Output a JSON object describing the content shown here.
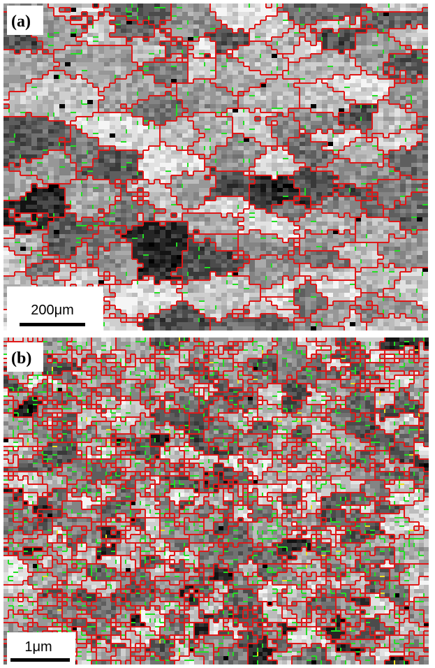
{
  "panels": [
    {
      "label": "(a)",
      "scale_bar": "200μm"
    },
    {
      "label": "(b)",
      "scale_bar": "1μm"
    }
  ]
}
